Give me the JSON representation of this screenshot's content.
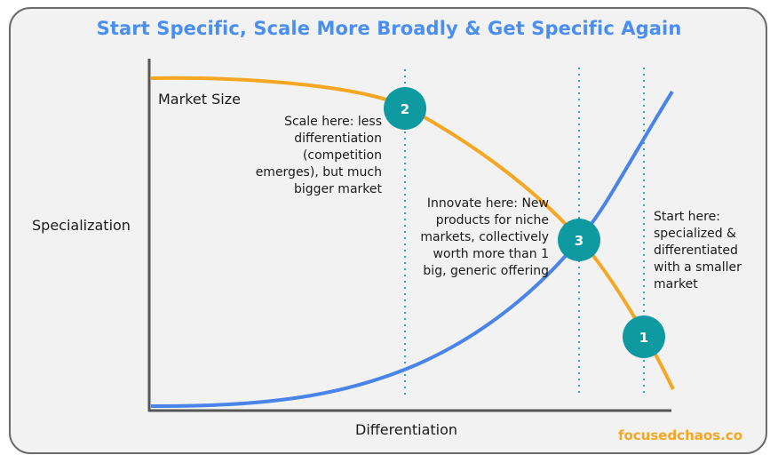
{
  "title": "Start Specific, Scale More Broadly & Get Specific Again",
  "y_axis_label": "Specialization",
  "x_axis_label": "Differentiation",
  "curve_label": "Market Size",
  "annotations": {
    "scale": "Scale here: less\ndifferentiation\n(competition\nemerges), but much\nbigger market",
    "innovate": "Innovate here: New\nproducts for niche\nmarkets, collectively\nworth more than 1\nbig, generic offering",
    "start": "Start here:\nspecialized &\ndifferentiated\nwith a smaller\nmarket"
  },
  "markers": {
    "m1": "1",
    "m2": "2",
    "m3": "3"
  },
  "brand": "focusedchaos.co",
  "colors": {
    "title": "#4a8ff0",
    "orange_curve": "#f5a623",
    "blue_curve": "#4a84e8",
    "marker_fill": "#0e9aa0",
    "dotted_line": "#2fa9a9",
    "brand": "#f5a623"
  }
}
